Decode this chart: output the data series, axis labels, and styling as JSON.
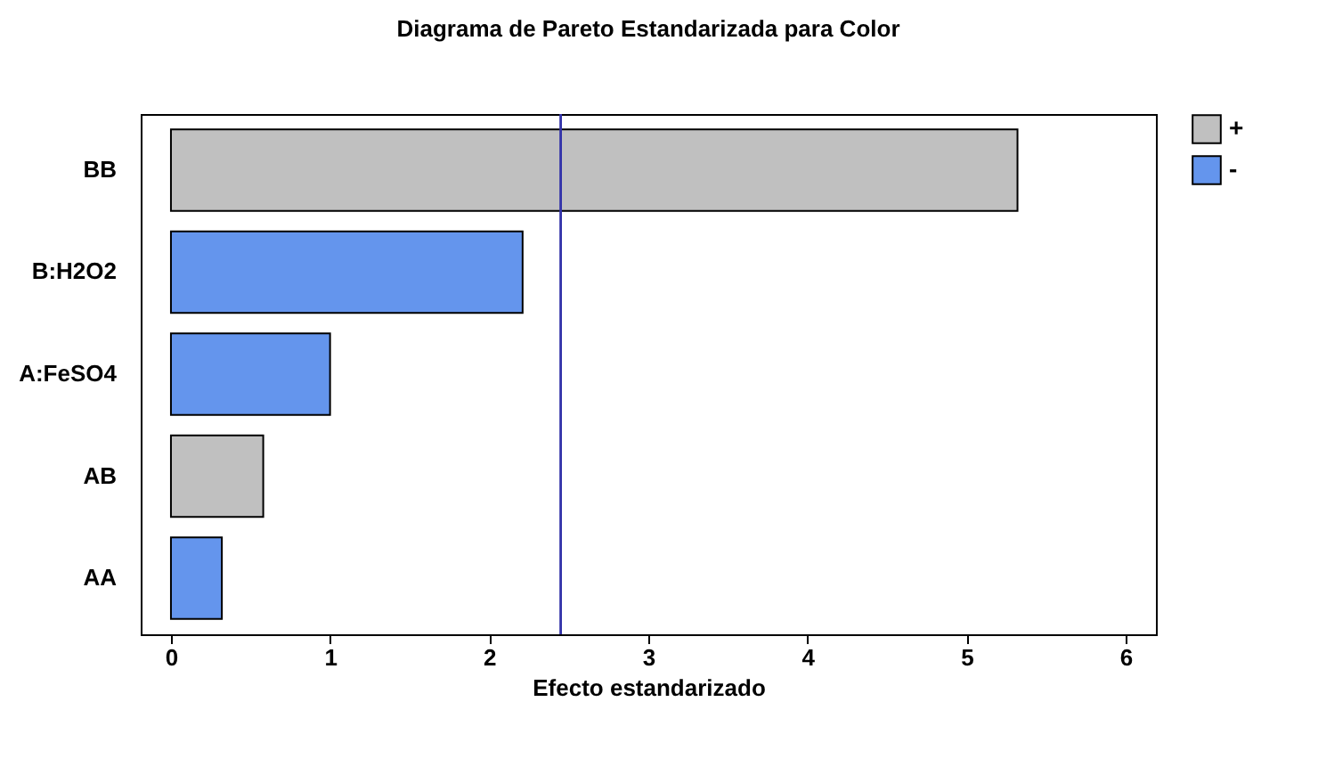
{
  "chart_data": {
    "type": "bar",
    "orientation": "horizontal",
    "title": "Diagrama de Pareto Estandarizada para Color",
    "xlabel": "Efecto estandarizado",
    "categories": [
      "BB",
      "B:H2O2",
      "A:FeSO4",
      "AB",
      "AA"
    ],
    "series": [
      {
        "name": "+",
        "color": "#c0c0c0",
        "values": [
          5.32,
          null,
          null,
          0.58,
          null
        ]
      },
      {
        "name": "-",
        "color": "#6495ed",
        "values": [
          null,
          2.21,
          1.0,
          null,
          0.32
        ]
      }
    ],
    "xlim": [
      -0.19,
      6.19
    ],
    "xticks": [
      0,
      1,
      2,
      3,
      4,
      5,
      6
    ],
    "grid": false,
    "legend": "top right",
    "ref_lines": [
      {
        "axis": "x",
        "value": 2.45,
        "color": "#3333aa"
      }
    ]
  }
}
